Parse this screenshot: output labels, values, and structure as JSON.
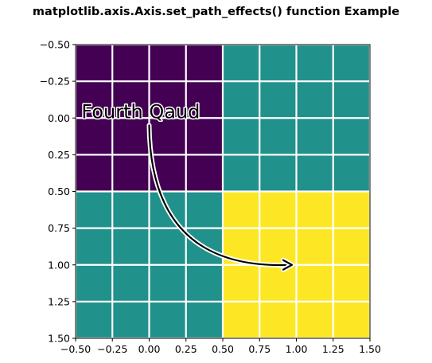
{
  "chart_data": {
    "type": "heatmap",
    "title": "matplotlib.axis.Axis.set_path_effects() function Example",
    "xlabel": "",
    "ylabel": "",
    "xlim": [
      -0.5,
      1.5
    ],
    "ylim": [
      1.5,
      -0.5
    ],
    "y_inverted": true,
    "grid": true,
    "grid_color": "#ffffff",
    "xticks": [
      -0.5,
      -0.25,
      0.0,
      0.25,
      0.5,
      0.75,
      1.0,
      1.25,
      1.5
    ],
    "xtick_labels": [
      "−0.50",
      "−0.25",
      "0.00",
      "0.25",
      "0.50",
      "0.75",
      "1.00",
      "1.25",
      "1.50"
    ],
    "yticks": [
      -0.5,
      -0.25,
      0.0,
      0.25,
      0.5,
      0.75,
      1.0,
      1.25,
      1.5
    ],
    "ytick_labels": [
      "−0.50",
      "−0.25",
      "0.00",
      "0.25",
      "0.50",
      "0.75",
      "1.00",
      "1.25",
      "1.50"
    ],
    "matrix": [
      [
        0,
        1
      ],
      [
        1,
        2
      ]
    ],
    "colors": [
      "#440154",
      "#21918c",
      "#fde725"
    ],
    "annotation": {
      "text": "Fourth Qaud",
      "text_xy": [
        -0.46,
        0.0
      ],
      "arrow_from": [
        0.0,
        0.05
      ],
      "arrow_to": [
        0.97,
        1.0
      ]
    }
  }
}
